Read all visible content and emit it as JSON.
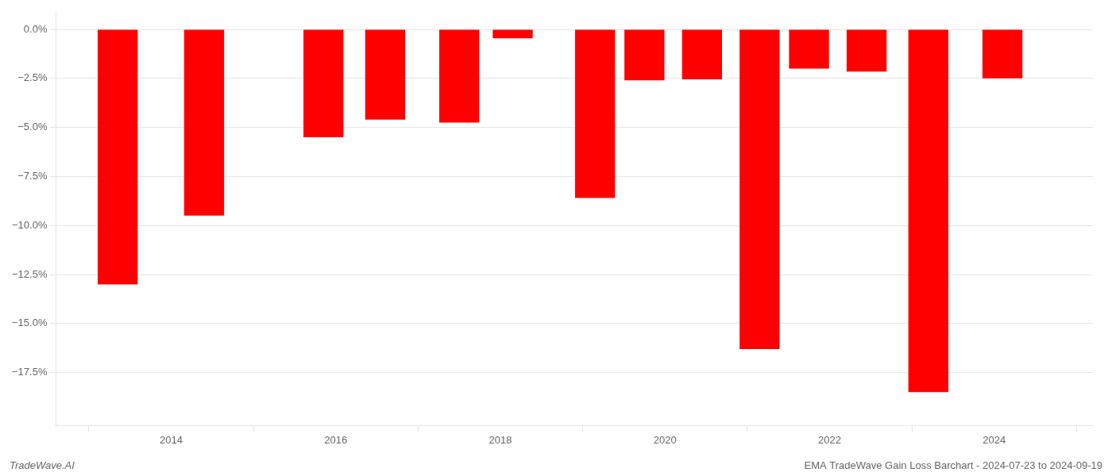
{
  "chart_data": {
    "type": "bar",
    "x": [
      2013.35,
      2014.4,
      2015.85,
      2016.6,
      2017.5,
      2018.15,
      2019.15,
      2019.75,
      2020.45,
      2021.15,
      2021.75,
      2022.45,
      2023.2,
      2024.1
    ],
    "values": [
      -13.0,
      -9.5,
      -5.5,
      -4.6,
      -4.75,
      -0.45,
      -8.6,
      -2.6,
      -2.55,
      -16.3,
      -2.0,
      -2.15,
      -18.5,
      -2.5
    ],
    "color": "#ff0000",
    "xlim": [
      2012.6,
      2025.2
    ],
    "xticks": [
      2014,
      2016,
      2018,
      2020,
      2022,
      2024
    ],
    "ylim": [
      -20.2,
      0.85
    ],
    "yticks": [
      {
        "value": 0.0,
        "label": "0.0%"
      },
      {
        "value": -2.5,
        "label": "−2.5%"
      },
      {
        "value": -5.0,
        "label": "−5.0%"
      },
      {
        "value": -7.5,
        "label": "−7.5%"
      },
      {
        "value": -10.0,
        "label": "−10.0%"
      },
      {
        "value": -12.5,
        "label": "−12.5%"
      },
      {
        "value": -15.0,
        "label": "−15.0%"
      },
      {
        "value": -17.5,
        "label": "−17.5%"
      }
    ],
    "grid": true,
    "annotations": [
      "TradeWave.AI",
      "EMA TradeWave Gain Loss Barchart - 2024-07-23 to 2024-09-19"
    ]
  }
}
